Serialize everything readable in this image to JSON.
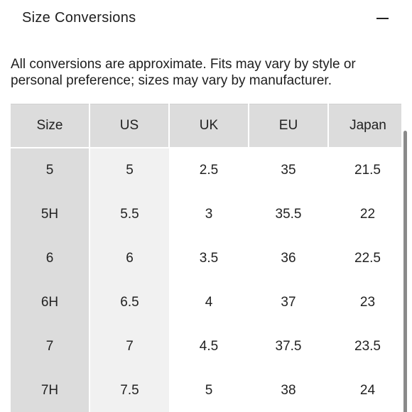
{
  "accordion": {
    "title": "Size Conversions",
    "toggle_icon": "minus-icon"
  },
  "disclaimer": "All conversions are approximate. Fits may vary by style or personal preference; sizes may vary by manufacturer.",
  "table": {
    "headers": [
      "Size",
      "US",
      "UK",
      "EU",
      "Japan"
    ],
    "rows": [
      [
        "5",
        "5",
        "2.5",
        "35",
        "21.5"
      ],
      [
        "5H",
        "5.5",
        "3",
        "35.5",
        "22"
      ],
      [
        "6",
        "6",
        "3.5",
        "36",
        "22.5"
      ],
      [
        "6H",
        "6.5",
        "4",
        "37",
        "23"
      ],
      [
        "7",
        "7",
        "4.5",
        "37.5",
        "23.5"
      ],
      [
        "7H",
        "7.5",
        "5",
        "38",
        "24"
      ]
    ]
  },
  "colors": {
    "header_bg": "#dcdcdc",
    "size_column_bg": "#dcdcdc",
    "us_column_bg": "#f1f1f1",
    "scrollbar": "#8a8a8a"
  }
}
